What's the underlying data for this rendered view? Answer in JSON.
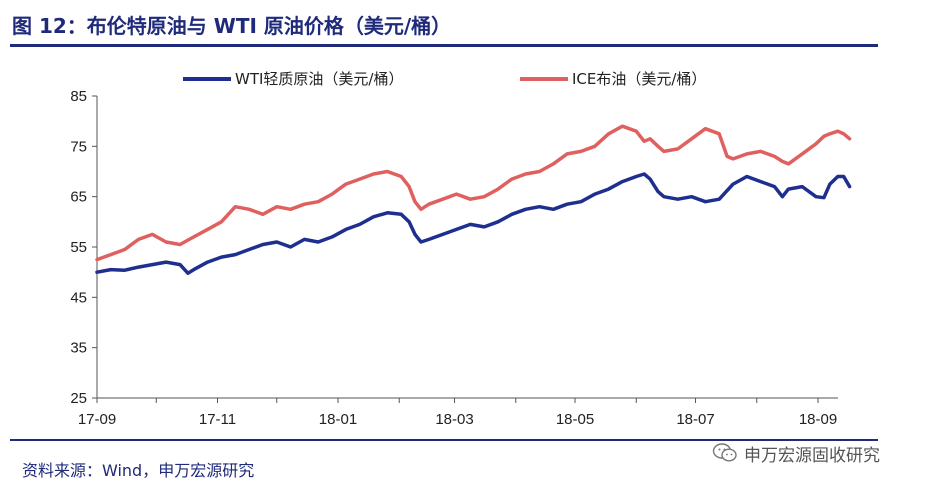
{
  "header": {
    "title": "图 12：布伦特原油与 WTI 原油价格（美元/桶）"
  },
  "footer": {
    "source": "资料来源：Wind，申万宏源研究",
    "watermark": "申万宏源固收研究",
    "watermark_icon": "wechat-icon"
  },
  "chart_data": {
    "type": "line",
    "title": "布伦特原油与 WTI 原油价格（美元/桶）",
    "xlabel": "",
    "ylabel": "",
    "ylim": [
      25,
      85
    ],
    "yticks": [
      25,
      35,
      45,
      55,
      65,
      75,
      85
    ],
    "xlim": [
      "2017-09-01",
      "2018-09-15"
    ],
    "xticks": [
      {
        "date": "2017-09-01",
        "label": "17-09"
      },
      {
        "date": "2017-11-01",
        "label": "17-11"
      },
      {
        "date": "2018-01-01",
        "label": "18-01"
      },
      {
        "date": "2018-03-01",
        "label": "18-03"
      },
      {
        "date": "2018-05-01",
        "label": "18-05"
      },
      {
        "date": "2018-07-01",
        "label": "18-07"
      },
      {
        "date": "2018-09-01",
        "label": "18-09"
      }
    ],
    "grid": false,
    "legend": "top",
    "series": [
      {
        "name": "WTI轻质原油（美元/桶）",
        "color": "#1f2f8f",
        "points": [
          [
            "2017-09-01",
            50.0
          ],
          [
            "2017-09-08",
            50.5
          ],
          [
            "2017-09-15",
            50.4
          ],
          [
            "2017-09-22",
            51.0
          ],
          [
            "2017-09-29",
            51.5
          ],
          [
            "2017-10-06",
            52.0
          ],
          [
            "2017-10-13",
            51.5
          ],
          [
            "2017-10-17",
            49.8
          ],
          [
            "2017-10-20",
            50.5
          ],
          [
            "2017-10-27",
            52.0
          ],
          [
            "2017-11-03",
            53.0
          ],
          [
            "2017-11-10",
            53.5
          ],
          [
            "2017-11-17",
            54.5
          ],
          [
            "2017-11-24",
            55.5
          ],
          [
            "2017-12-01",
            56.0
          ],
          [
            "2017-12-08",
            55.0
          ],
          [
            "2017-12-15",
            56.5
          ],
          [
            "2017-12-22",
            56.0
          ],
          [
            "2017-12-29",
            57.0
          ],
          [
            "2018-01-05",
            58.5
          ],
          [
            "2018-01-12",
            59.5
          ],
          [
            "2018-01-19",
            61.0
          ],
          [
            "2018-01-26",
            61.8
          ],
          [
            "2018-02-02",
            61.5
          ],
          [
            "2018-02-06",
            60.0
          ],
          [
            "2018-02-09",
            57.5
          ],
          [
            "2018-02-12",
            56.0
          ],
          [
            "2018-02-16",
            56.5
          ],
          [
            "2018-02-23",
            57.5
          ],
          [
            "2018-03-02",
            58.5
          ],
          [
            "2018-03-09",
            59.5
          ],
          [
            "2018-03-16",
            59.0
          ],
          [
            "2018-03-23",
            60.0
          ],
          [
            "2018-03-30",
            61.5
          ],
          [
            "2018-04-06",
            62.5
          ],
          [
            "2018-04-13",
            63.0
          ],
          [
            "2018-04-20",
            62.5
          ],
          [
            "2018-04-27",
            63.5
          ],
          [
            "2018-05-04",
            64.0
          ],
          [
            "2018-05-11",
            65.5
          ],
          [
            "2018-05-18",
            66.5
          ],
          [
            "2018-05-25",
            68.0
          ],
          [
            "2018-06-01",
            69.0
          ],
          [
            "2018-06-05",
            69.5
          ],
          [
            "2018-06-08",
            68.5
          ],
          [
            "2018-06-12",
            66.0
          ],
          [
            "2018-06-15",
            65.0
          ],
          [
            "2018-06-22",
            64.5
          ],
          [
            "2018-06-29",
            65.0
          ],
          [
            "2018-07-06",
            64.0
          ],
          [
            "2018-07-13",
            64.5
          ],
          [
            "2018-07-20",
            67.5
          ],
          [
            "2018-07-27",
            69.0
          ],
          [
            "2018-08-03",
            68.0
          ],
          [
            "2018-08-10",
            67.0
          ],
          [
            "2018-08-14",
            65.0
          ],
          [
            "2018-08-17",
            66.5
          ],
          [
            "2018-08-24",
            67.0
          ],
          [
            "2018-08-31",
            65.0
          ],
          [
            "2018-09-04",
            64.8
          ],
          [
            "2018-09-07",
            67.5
          ],
          [
            "2018-09-11",
            69.0
          ],
          [
            "2018-09-14",
            69.0
          ],
          [
            "2018-09-17",
            67.0
          ]
        ]
      },
      {
        "name": "ICE布油（美元/桶）",
        "color": "#e06060",
        "points": [
          [
            "2017-09-01",
            52.5
          ],
          [
            "2017-09-08",
            53.5
          ],
          [
            "2017-09-15",
            54.5
          ],
          [
            "2017-09-22",
            56.5
          ],
          [
            "2017-09-29",
            57.5
          ],
          [
            "2017-10-06",
            56.0
          ],
          [
            "2017-10-13",
            55.5
          ],
          [
            "2017-10-20",
            57.0
          ],
          [
            "2017-10-27",
            58.5
          ],
          [
            "2017-11-03",
            60.0
          ],
          [
            "2017-11-10",
            63.0
          ],
          [
            "2017-11-17",
            62.5
          ],
          [
            "2017-11-24",
            61.5
          ],
          [
            "2017-12-01",
            63.0
          ],
          [
            "2017-12-08",
            62.5
          ],
          [
            "2017-12-15",
            63.5
          ],
          [
            "2017-12-22",
            64.0
          ],
          [
            "2017-12-29",
            65.5
          ],
          [
            "2018-01-05",
            67.5
          ],
          [
            "2018-01-12",
            68.5
          ],
          [
            "2018-01-19",
            69.5
          ],
          [
            "2018-01-26",
            70.0
          ],
          [
            "2018-02-02",
            69.0
          ],
          [
            "2018-02-06",
            67.0
          ],
          [
            "2018-02-09",
            64.0
          ],
          [
            "2018-02-12",
            62.5
          ],
          [
            "2018-02-16",
            63.5
          ],
          [
            "2018-02-23",
            64.5
          ],
          [
            "2018-03-02",
            65.5
          ],
          [
            "2018-03-09",
            64.5
          ],
          [
            "2018-03-16",
            65.0
          ],
          [
            "2018-03-23",
            66.5
          ],
          [
            "2018-03-30",
            68.5
          ],
          [
            "2018-04-06",
            69.5
          ],
          [
            "2018-04-13",
            70.0
          ],
          [
            "2018-04-20",
            71.5
          ],
          [
            "2018-04-27",
            73.5
          ],
          [
            "2018-05-04",
            74.0
          ],
          [
            "2018-05-11",
            75.0
          ],
          [
            "2018-05-18",
            77.5
          ],
          [
            "2018-05-25",
            79.0
          ],
          [
            "2018-06-01",
            78.0
          ],
          [
            "2018-06-05",
            76.0
          ],
          [
            "2018-06-08",
            76.5
          ],
          [
            "2018-06-12",
            75.0
          ],
          [
            "2018-06-15",
            74.0
          ],
          [
            "2018-06-22",
            74.5
          ],
          [
            "2018-06-29",
            76.5
          ],
          [
            "2018-07-06",
            78.5
          ],
          [
            "2018-07-13",
            77.5
          ],
          [
            "2018-07-17",
            73.0
          ],
          [
            "2018-07-20",
            72.5
          ],
          [
            "2018-07-27",
            73.5
          ],
          [
            "2018-08-03",
            74.0
          ],
          [
            "2018-08-10",
            73.0
          ],
          [
            "2018-08-14",
            72.0
          ],
          [
            "2018-08-17",
            71.5
          ],
          [
            "2018-08-24",
            73.5
          ],
          [
            "2018-08-31",
            75.5
          ],
          [
            "2018-09-04",
            77.0
          ],
          [
            "2018-09-07",
            77.5
          ],
          [
            "2018-09-11",
            78.0
          ],
          [
            "2018-09-14",
            77.5
          ],
          [
            "2018-09-17",
            76.5
          ]
        ]
      }
    ]
  }
}
